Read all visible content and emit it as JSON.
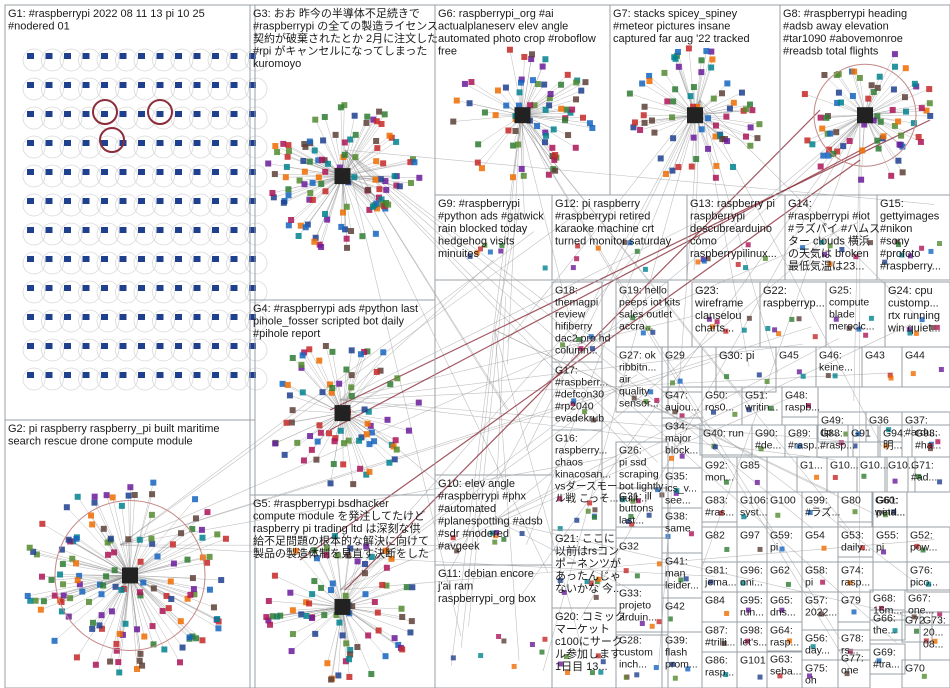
{
  "groups": [
    {
      "id": "G1",
      "lines": [
        "G1: #raspberrypi 2022 08 11 13 pi 10 25",
        "#nodered 01"
      ]
    },
    {
      "id": "G2",
      "lines": [
        "G2: pi raspberry raspberry_pi built maritime",
        "search rescue drone compute module"
      ]
    },
    {
      "id": "G3",
      "lines": [
        "G3: おお 昨今の半導体不足続きで",
        "#raspberrypi の全ての製造ライセンス",
        "契約が破棄されたとか 2月に注文した",
        "#rpi がキャンセルになってしまった",
        "kuromoyo"
      ]
    },
    {
      "id": "G4",
      "lines": [
        "G4: #raspberrypi ads #python last",
        "pihole_fosser scripted bot daily",
        "#pihole report"
      ]
    },
    {
      "id": "G5",
      "lines": [
        "G5: #raspberrypi bsdhacker",
        "compute module を発注してたけど",
        "raspberry pi trading ltd は深刻な供",
        "給不足問題の根本的な解決に向けて",
        "製品の製造体制を見直す決断をした"
      ]
    },
    {
      "id": "G6",
      "lines": [
        "G6: raspberrypi_org #ai",
        "actualplaneserv elev angle",
        "automated photo crop #roboflow",
        "free"
      ]
    },
    {
      "id": "G7",
      "lines": [
        "G7: stacks spicey_spiney",
        "#meteor pictures insane",
        "captured far aug '22 tracked"
      ]
    },
    {
      "id": "G8",
      "lines": [
        "G8: #raspberrypi heading",
        "#adsb away elevation",
        "#tar1090 #abovemonroe",
        "#readsb total flights"
      ]
    },
    {
      "id": "G9",
      "lines": [
        "G9: #raspberrypi",
        "#python ads #gatwick",
        "rain blocked today",
        "hedgehog visits",
        "minuites"
      ]
    },
    {
      "id": "G10",
      "lines": [
        "G10: elev angle",
        "#raspberrypi #phx",
        "#automated",
        "#planespotting #adsb",
        "#sdr #nodered",
        "#avgeek"
      ]
    },
    {
      "id": "G11",
      "lines": [
        "G11: debian encore",
        "j'ai ram",
        "raspberrypi_org box"
      ]
    },
    {
      "id": "G12",
      "lines": [
        "G12: pi raspberry",
        "#raspberrypi retired",
        "karaoke machine crt",
        "turned monitor saturday"
      ]
    },
    {
      "id": "G13",
      "lines": [
        "G13: raspberry pi",
        "raspberrypi",
        "descubrearduino",
        "cómo",
        "raspberrypilinux..."
      ]
    },
    {
      "id": "G14",
      "lines": [
        "G14:",
        "#raspberrypi #iot",
        "#ラズパイ #ハムス",
        "ター clouds 横浜",
        "の天気は broken",
        "最低気温は23..."
      ]
    },
    {
      "id": "G15",
      "lines": [
        "G15:",
        "gettyimages",
        "#nikon",
        "#sony",
        "#profoto",
        "#raspberry..."
      ]
    },
    {
      "id": "G16",
      "lines": [
        "G16:",
        "raspberry...",
        "chaos",
        "kinacosan...",
        "vsダースモー",
        "ル戦 こっそ..."
      ]
    },
    {
      "id": "G17",
      "lines": [
        "G17:",
        "#raspberr...",
        "#defcon30",
        "#rp2040",
        "evadekrub",
        "#canbus..."
      ]
    },
    {
      "id": "G18",
      "lines": [
        "G18:",
        "themagpi",
        "review",
        "hifiberry",
        "dac2 pro hd",
        "column..."
      ]
    },
    {
      "id": "G19",
      "lines": [
        "G19: hello",
        "peeps iot kits",
        "sales outlet",
        "accra..."
      ]
    },
    {
      "id": "G20",
      "lines": [
        "G20: コミック",
        "マーケット",
        "c100にサーク",
        "ル参加します",
        "1日目 13..."
      ]
    },
    {
      "id": "G21",
      "lines": [
        "G21: ここに",
        "以前はrsコン",
        "ポーネンツが",
        "あったんじゃ",
        "ないかな 今..."
      ]
    },
    {
      "id": "G22",
      "lines": [
        "G22:",
        "raspberryp..."
      ]
    },
    {
      "id": "G23",
      "lines": [
        "G23:",
        "wireframe",
        "clanselou",
        "charts..."
      ]
    },
    {
      "id": "G24",
      "lines": [
        "G24: cpu",
        "customp...",
        "rtx running",
        "win quiet..."
      ]
    },
    {
      "id": "G25",
      "lines": [
        "G25:",
        "compute",
        "blade",
        "meroclc..."
      ]
    },
    {
      "id": "G26",
      "lines": [
        "G26:",
        "pi ssd",
        "scraping",
        "bot lightly",
        "built..."
      ]
    },
    {
      "id": "G27",
      "lines": [
        "G27: ok",
        "ribbitn...",
        "air",
        "quality",
        "sensor..."
      ]
    },
    {
      "id": "G28",
      "lines": [
        "G28:",
        "custom",
        "inch..."
      ]
    },
    {
      "id": "G29",
      "lines": [
        "G29"
      ]
    },
    {
      "id": "G30",
      "lines": [
        "G30: pi"
      ]
    },
    {
      "id": "G31",
      "lines": [
        "G31: ill",
        "buttons",
        "last..."
      ]
    },
    {
      "id": "G32",
      "lines": [
        "G32"
      ]
    },
    {
      "id": "G33",
      "lines": [
        "G33:",
        "projeto",
        "arduin..."
      ]
    },
    {
      "id": "G34",
      "lines": [
        "G34:",
        "major",
        "block..."
      ]
    },
    {
      "id": "G35",
      "lines": [
        "G35:",
        "ics_v...",
        "see..."
      ]
    },
    {
      "id": "G36",
      "lines": [
        "G36"
      ]
    },
    {
      "id": "G37",
      "lines": [
        "G37:",
        "#ardu..."
      ]
    },
    {
      "id": "G38",
      "lines": [
        "G38:",
        "same"
      ]
    },
    {
      "id": "G39",
      "lines": [
        "G39:",
        "flash",
        "prom..."
      ]
    },
    {
      "id": "G40",
      "lines": [
        "G40: run"
      ]
    },
    {
      "id": "G41",
      "lines": [
        "G41:",
        "man",
        "leider..."
      ]
    },
    {
      "id": "G42",
      "lines": [
        "G42"
      ]
    },
    {
      "id": "G43",
      "lines": [
        "G43"
      ]
    },
    {
      "id": "G44",
      "lines": [
        "G44"
      ]
    },
    {
      "id": "G45",
      "lines": [
        "G45"
      ]
    },
    {
      "id": "G46",
      "lines": [
        "G46:",
        "keine..."
      ]
    },
    {
      "id": "G47",
      "lines": [
        "G47:",
        "aujou..."
      ]
    },
    {
      "id": "G48",
      "lines": [
        "G48:",
        "raspb..."
      ]
    },
    {
      "id": "G49",
      "lines": [
        "G49:",
        "tip..."
      ]
    },
    {
      "id": "G50",
      "lines": [
        "G50:",
        "ros0..."
      ]
    },
    {
      "id": "G51",
      "lines": [
        "G51:",
        "writin..."
      ]
    },
    {
      "id": "G52",
      "lines": [
        "G52:",
        "pow..."
      ]
    },
    {
      "id": "G53",
      "lines": [
        "G53:",
        "daily..."
      ]
    },
    {
      "id": "G54",
      "lines": [
        "G54"
      ]
    },
    {
      "id": "G55",
      "lines": [
        "G55:",
        "pi"
      ]
    },
    {
      "id": "G56",
      "lines": [
        "G56:",
        "day..."
      ]
    },
    {
      "id": "G57",
      "lines": [
        "G57:",
        "2022..."
      ]
    },
    {
      "id": "G58",
      "lines": [
        "G58:",
        "pi"
      ]
    },
    {
      "id": "G59",
      "lines": [
        "G59:",
        "pi"
      ]
    },
    {
      "id": "G60",
      "lines": [
        "G60:",
        "wind..."
      ]
    },
    {
      "id": "G61",
      "lines": [
        "G61:",
        "peta..."
      ]
    },
    {
      "id": "G62",
      "lines": [
        "G62"
      ]
    },
    {
      "id": "G63",
      "lines": [
        "G63:",
        "seba..."
      ]
    },
    {
      "id": "G64",
      "lines": [
        "G64:",
        "rasp..."
      ]
    },
    {
      "id": "G65",
      "lines": [
        "G65:",
        "dns..."
      ]
    },
    {
      "id": "G66",
      "lines": [
        "G66:",
        "the..."
      ]
    },
    {
      "id": "G67",
      "lines": [
        "G67:",
        "one..."
      ]
    },
    {
      "id": "G68",
      "lines": [
        "G68:",
        "16m..."
      ]
    },
    {
      "id": "G69",
      "lines": [
        "G69:",
        "#tra..."
      ]
    },
    {
      "id": "G70",
      "lines": [
        "G70"
      ]
    },
    {
      "id": "G71",
      "lines": [
        "G71:",
        "#ad..."
      ]
    },
    {
      "id": "G72",
      "lines": [
        "G72"
      ]
    },
    {
      "id": "G73",
      "lines": [
        "G73:",
        "20...",
        "08..."
      ]
    },
    {
      "id": "G74",
      "lines": [
        "G74:",
        "rasp..."
      ]
    },
    {
      "id": "G75",
      "lines": [
        "G75:",
        "oh"
      ]
    },
    {
      "id": "G76",
      "lines": [
        "G76:",
        "pico..."
      ]
    },
    {
      "id": "G77",
      "lines": [
        "G77:",
        "one"
      ]
    },
    {
      "id": "G78",
      "lines": [
        "G78:",
        "rs..."
      ]
    },
    {
      "id": "G79",
      "lines": [
        "G79"
      ]
    },
    {
      "id": "G80",
      "lines": [
        "G80"
      ]
    },
    {
      "id": "G81",
      "lines": [
        "G81:",
        "jema..."
      ]
    },
    {
      "id": "G82",
      "lines": [
        "G82"
      ]
    },
    {
      "id": "G83",
      "lines": [
        "G83:",
        "#ras..."
      ]
    },
    {
      "id": "G84",
      "lines": [
        "G84"
      ]
    },
    {
      "id": "G85",
      "lines": [
        "G85"
      ]
    },
    {
      "id": "G86",
      "lines": [
        "G86:",
        "rasp..."
      ]
    },
    {
      "id": "G87",
      "lines": [
        "G87:",
        "#trilli..."
      ]
    },
    {
      "id": "G88",
      "lines": [
        "G88:",
        "#rasp..."
      ]
    },
    {
      "id": "G89",
      "lines": [
        "G89:",
        "#rasp..."
      ]
    },
    {
      "id": "G90",
      "lines": [
        "G90:",
        "#de..."
      ]
    },
    {
      "id": "G91",
      "lines": [
        "G91"
      ]
    },
    {
      "id": "G92",
      "lines": [
        "G92:",
        "mon..."
      ]
    },
    {
      "id": "G93",
      "lines": [
        "G93:",
        "#ha..."
      ]
    },
    {
      "id": "G94",
      "lines": [
        "G94:",
        "明..."
      ]
    },
    {
      "id": "G95",
      "lines": [
        "G95:",
        "run..."
      ]
    },
    {
      "id": "G96",
      "lines": [
        "G96:",
        "oni..."
      ]
    },
    {
      "id": "G97",
      "lines": [
        "G97"
      ]
    },
    {
      "id": "G98",
      "lines": [
        "G98:",
        "let's..."
      ]
    },
    {
      "id": "G99",
      "lines": [
        "G99:",
        "#ラズ..."
      ]
    },
    {
      "id": "G100",
      "lines": [
        "G100"
      ]
    },
    {
      "id": "G101",
      "lines": [
        "G101"
      ]
    },
    {
      "id": "G102",
      "lines": [
        "G10..."
      ]
    },
    {
      "id": "G103",
      "lines": [
        "G10..."
      ]
    },
    {
      "id": "G104",
      "lines": [
        "G1..."
      ]
    },
    {
      "id": "G105",
      "lines": [
        "G10..."
      ]
    },
    {
      "id": "G106",
      "lines": [
        "G106:",
        "syst..."
      ]
    }
  ],
  "colors": {
    "panel_border": "#9aa0a6",
    "edge": "#8c8c8c",
    "edge_strong": "#8b2d3a",
    "group_palette": [
      "#1f3f8f",
      "#2e7d32",
      "#c62828",
      "#ef6c00",
      "#6a1b9a",
      "#00838f",
      "#5d4037",
      "#ad1457",
      "#1565c0",
      "#558b2f"
    ],
    "ring": "#c48888"
  }
}
